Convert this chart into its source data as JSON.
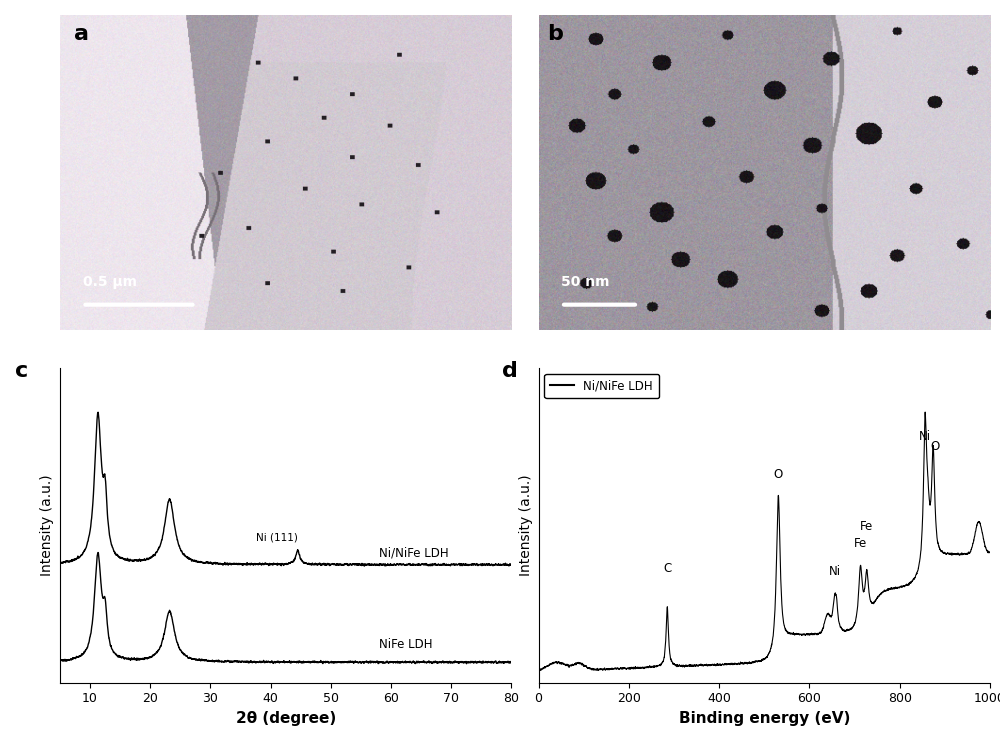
{
  "fig_width": 10.0,
  "fig_height": 7.5,
  "dpi": 100,
  "bg_color": "#ffffff",
  "panel_label_fontsize": 16,
  "panel_label_weight": "bold",
  "scalebar_a_text": "0.5 μm",
  "scalebar_b_text": "50 nm",
  "xrd_xlabel": "2θ (degree)",
  "xrd_ylabel": "Intensity (a.u.)",
  "xrd_xlim": [
    5,
    80
  ],
  "xrd_xticks": [
    10,
    20,
    30,
    40,
    50,
    60,
    70,
    80
  ],
  "xrd_label1": "Ni/NiFe LDH",
  "xrd_label2": "NiFe LDH",
  "xrd_ni111_label": "Ni (111)",
  "xps_xlabel": "Binding energy (eV)",
  "xps_ylabel": "Intensity (a.u.)",
  "xps_xlim": [
    0,
    1000
  ],
  "xps_xticks": [
    0,
    200,
    400,
    600,
    800,
    1000
  ],
  "xps_legend": "Ni/NiFe LDH"
}
